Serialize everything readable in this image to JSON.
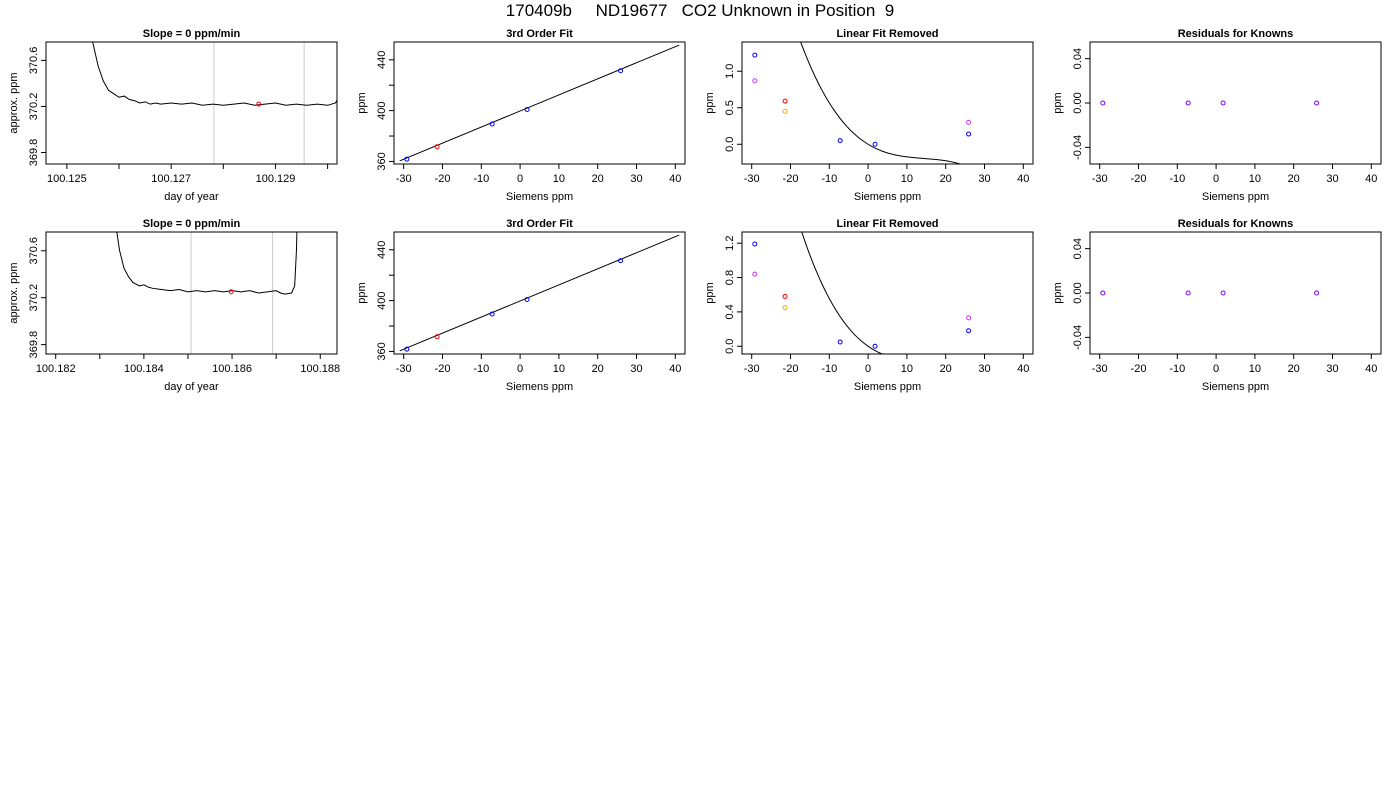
{
  "page": {
    "title": "170409b     ND19677   CO2 Unknown in Position  9"
  },
  "colors": {
    "line": "#000000",
    "vline": "#cccccc",
    "blue": "#0000ff",
    "red": "#ff0000",
    "orange": "#ffa500",
    "magenta": "#cc33ff",
    "purple": "#8000ff"
  },
  "chart_data": [
    {
      "type": "line",
      "title": "Slope =  0  ppm/min",
      "xlabel": "day of year",
      "ylabel": "approx. ppm",
      "xlim": [
        100.1246,
        100.13018
      ],
      "ylim": [
        369.7,
        370.76
      ],
      "xticks": [
        100.125,
        100.126,
        100.127,
        100.128,
        100.129,
        100.13
      ],
      "xtick_labels": [
        "100.125",
        "",
        "100.127",
        "",
        "100.129",
        ""
      ],
      "yticks": [
        369.8,
        370.2,
        370.6
      ],
      "ytick_labels": [
        "369.8",
        "370.2",
        "370.6"
      ],
      "vlines": [
        100.12782,
        100.12955
      ],
      "series": [
        {
          "values": [
            [
              100.12525,
              371.2
            ],
            [
              100.12545,
              370.85
            ],
            [
              100.1256,
              370.55
            ],
            [
              100.1257,
              370.42
            ],
            [
              100.1258,
              370.34
            ],
            [
              100.1259,
              370.31
            ],
            [
              100.126,
              370.28
            ],
            [
              100.1261,
              370.29
            ],
            [
              100.1262,
              370.26
            ],
            [
              100.1263,
              370.25
            ],
            [
              100.1264,
              370.23
            ],
            [
              100.1265,
              370.24
            ],
            [
              100.1266,
              370.22
            ],
            [
              100.1267,
              370.23
            ],
            [
              100.1268,
              370.22
            ],
            [
              100.127,
              370.23
            ],
            [
              100.1272,
              370.22
            ],
            [
              100.1274,
              370.23
            ],
            [
              100.1276,
              370.21
            ],
            [
              100.1278,
              370.22
            ],
            [
              100.128,
              370.21
            ],
            [
              100.1282,
              370.22
            ],
            [
              100.1284,
              370.23
            ],
            [
              100.1286,
              370.21
            ],
            [
              100.1288,
              370.22
            ],
            [
              100.129,
              370.23
            ],
            [
              100.1292,
              370.21
            ],
            [
              100.1294,
              370.22
            ],
            [
              100.1296,
              370.21
            ],
            [
              100.1298,
              370.22
            ],
            [
              100.13,
              370.21
            ],
            [
              100.13015,
              370.23
            ],
            [
              100.1302,
              370.27
            ],
            [
              100.13028,
              370.5
            ],
            [
              100.13035,
              371.2
            ]
          ]
        }
      ],
      "points": [
        {
          "x": 100.12868,
          "y": 370.22,
          "color": "red"
        }
      ]
    },
    {
      "type": "line",
      "title": "3rd Order Fit",
      "xlabel": "Siemens ppm",
      "ylabel": "ppm",
      "xlim": [
        -32.5,
        42.5
      ],
      "ylim": [
        358,
        454
      ],
      "xticks": [
        -30,
        -20,
        -10,
        0,
        10,
        20,
        30,
        40
      ],
      "xtick_labels": [
        "-30",
        "-20",
        "-10",
        "0",
        "10",
        "20",
        "30",
        "40"
      ],
      "yticks": [
        360,
        380,
        400,
        420,
        440
      ],
      "ytick_labels": [
        "360",
        "",
        "400",
        "",
        "440"
      ],
      "series": [
        {
          "values": [
            [
              -31,
              360.5
            ],
            [
              41,
              451.6
            ]
          ]
        }
      ],
      "points": [
        {
          "x": -29.2,
          "y": 361.8,
          "color": "blue"
        },
        {
          "x": -21.4,
          "y": 371.6,
          "color": "red"
        },
        {
          "x": -7.2,
          "y": 389.5,
          "color": "blue"
        },
        {
          "x": 1.8,
          "y": 400.9,
          "color": "blue"
        },
        {
          "x": 25.9,
          "y": 431.4,
          "color": "blue"
        }
      ]
    },
    {
      "type": "scatter",
      "title": "Linear Fit Removed",
      "xlabel": "Siemens ppm",
      "ylabel": "ppm",
      "xlim": [
        -32.5,
        42.5
      ],
      "ylim": [
        -0.27,
        1.4
      ],
      "xticks": [
        -30,
        -20,
        -10,
        0,
        10,
        20,
        30,
        40
      ],
      "xtick_labels": [
        "-30",
        "-20",
        "-10",
        "0",
        "10",
        "20",
        "30",
        "40"
      ],
      "yticks": [
        0.0,
        0.5,
        1.0
      ],
      "ytick_labels": [
        "0.0",
        "0.5",
        "1.0"
      ],
      "curve": {
        "a": 0.0,
        "b": -0.0324,
        "c": 0.00197,
        "d": -4.57e-05,
        "xmin": -30.5,
        "xmax": 41
      },
      "points": [
        {
          "x": -29.2,
          "y": 1.22,
          "color": "blue"
        },
        {
          "x": -29.2,
          "y": 0.87,
          "color": "magenta"
        },
        {
          "x": -21.4,
          "y": 0.59,
          "color": "red"
        },
        {
          "x": -21.4,
          "y": 0.45,
          "color": "orange"
        },
        {
          "x": -7.2,
          "y": 0.05,
          "color": "blue"
        },
        {
          "x": 1.8,
          "y": 0.0,
          "color": "blue"
        },
        {
          "x": 25.9,
          "y": 0.14,
          "color": "blue"
        },
        {
          "x": 25.9,
          "y": 0.3,
          "color": "magenta"
        }
      ]
    },
    {
      "type": "scatter",
      "title": "Residuals for Knowns",
      "xlabel": "Siemens ppm",
      "ylabel": "ppm",
      "xlim": [
        -32.5,
        42.5
      ],
      "ylim": [
        -0.055,
        0.055
      ],
      "xticks": [
        -30,
        -20,
        -10,
        0,
        10,
        20,
        30,
        40
      ],
      "xtick_labels": [
        "-30",
        "-20",
        "-10",
        "0",
        "10",
        "20",
        "30",
        "40"
      ],
      "yticks": [
        -0.04,
        0.0,
        0.04
      ],
      "ytick_labels": [
        "-0.04",
        "0.00",
        "0.04"
      ],
      "points": [
        {
          "x": -29.2,
          "y": 0.0,
          "color": "purple"
        },
        {
          "x": -7.2,
          "y": 0.0,
          "color": "purple"
        },
        {
          "x": 1.8,
          "y": 0.0,
          "color": "purple"
        },
        {
          "x": 25.9,
          "y": 0.0,
          "color": "purple"
        }
      ]
    },
    {
      "type": "line",
      "title": "Slope =  0  ppm/min",
      "xlabel": "day of year",
      "ylabel": "approx. ppm",
      "xlim": [
        100.18178,
        100.18838
      ],
      "ylim": [
        369.72,
        370.76
      ],
      "xticks": [
        100.182,
        100.183,
        100.184,
        100.185,
        100.186,
        100.187,
        100.188
      ],
      "xtick_labels": [
        "100.182",
        "",
        "100.184",
        "",
        "100.186",
        "",
        "100.188"
      ],
      "yticks": [
        369.8,
        370.2,
        370.6
      ],
      "ytick_labels": [
        "369.8",
        "370.2",
        "370.6"
      ],
      "vlines": [
        100.18507,
        100.18692
      ],
      "series": [
        {
          "values": [
            [
              100.18322,
              371.2
            ],
            [
              100.18335,
              370.85
            ],
            [
              100.18345,
              370.6
            ],
            [
              100.18355,
              370.45
            ],
            [
              100.18365,
              370.38
            ],
            [
              100.18375,
              370.33
            ],
            [
              100.1839,
              370.3
            ],
            [
              100.184,
              370.31
            ],
            [
              100.1841,
              370.29
            ],
            [
              100.1842,
              370.28
            ],
            [
              100.1844,
              370.27
            ],
            [
              100.1846,
              370.26
            ],
            [
              100.1848,
              370.27
            ],
            [
              100.185,
              370.25
            ],
            [
              100.1852,
              370.26
            ],
            [
              100.1854,
              370.25
            ],
            [
              100.1856,
              370.26
            ],
            [
              100.1858,
              370.25
            ],
            [
              100.186,
              370.26
            ],
            [
              100.1862,
              370.25
            ],
            [
              100.1864,
              370.26
            ],
            [
              100.1866,
              370.24
            ],
            [
              100.1868,
              370.25
            ],
            [
              100.187,
              370.26
            ],
            [
              100.1871,
              370.24
            ],
            [
              100.1872,
              370.23
            ],
            [
              100.18735,
              370.24
            ],
            [
              100.18742,
              370.3
            ],
            [
              100.18746,
              370.6
            ],
            [
              100.1875,
              371.2
            ]
          ]
        }
      ],
      "points": [
        {
          "x": 100.18598,
          "y": 370.25,
          "color": "red"
        }
      ]
    },
    {
      "type": "line",
      "title": "3rd Order Fit",
      "xlabel": "Siemens ppm",
      "ylabel": "ppm",
      "xlim": [
        -32.5,
        42.5
      ],
      "ylim": [
        358,
        454
      ],
      "xticks": [
        -30,
        -20,
        -10,
        0,
        10,
        20,
        30,
        40
      ],
      "xtick_labels": [
        "-30",
        "-20",
        "-10",
        "0",
        "10",
        "20",
        "30",
        "40"
      ],
      "yticks": [
        360,
        380,
        400,
        420,
        440
      ],
      "ytick_labels": [
        "360",
        "",
        "400",
        "",
        "440"
      ],
      "series": [
        {
          "values": [
            [
              -31,
              360.5
            ],
            [
              41,
              451.6
            ]
          ]
        }
      ],
      "points": [
        {
          "x": -29.2,
          "y": 361.8,
          "color": "blue"
        },
        {
          "x": -21.4,
          "y": 371.6,
          "color": "red"
        },
        {
          "x": -7.2,
          "y": 389.5,
          "color": "blue"
        },
        {
          "x": 1.8,
          "y": 400.9,
          "color": "blue"
        },
        {
          "x": 25.9,
          "y": 431.4,
          "color": "blue"
        }
      ]
    },
    {
      "type": "scatter",
      "title": "Linear Fit Removed",
      "xlabel": "Siemens ppm",
      "ylabel": "ppm",
      "xlim": [
        -32.5,
        42.5
      ],
      "ylim": [
        -0.09,
        1.33
      ],
      "xticks": [
        -30,
        -20,
        -10,
        0,
        10,
        20,
        30,
        40
      ],
      "xtick_labels": [
        "-30",
        "-20",
        "-10",
        "0",
        "10",
        "20",
        "30",
        "40"
      ],
      "yticks": [
        0.0,
        0.4,
        0.8,
        1.2
      ],
      "ytick_labels": [
        "0.0",
        "0.4",
        "0.8",
        "1.2"
      ],
      "curve": {
        "a": 0.0,
        "b": -0.0315,
        "c": 0.00197,
        "d": -4.3e-05,
        "xmin": -30.5,
        "xmax": 41
      },
      "points": [
        {
          "x": -29.2,
          "y": 1.19,
          "color": "blue"
        },
        {
          "x": -29.2,
          "y": 0.84,
          "color": "magenta"
        },
        {
          "x": -21.4,
          "y": 0.58,
          "color": "red"
        },
        {
          "x": -21.4,
          "y": 0.45,
          "color": "orange"
        },
        {
          "x": -7.2,
          "y": 0.05,
          "color": "blue"
        },
        {
          "x": 1.8,
          "y": 0.0,
          "color": "blue"
        },
        {
          "x": 25.9,
          "y": 0.18,
          "color": "blue"
        },
        {
          "x": 25.9,
          "y": 0.33,
          "color": "magenta"
        }
      ]
    },
    {
      "type": "scatter",
      "title": "Residuals for Knowns",
      "xlabel": "Siemens ppm",
      "ylabel": "ppm",
      "xlim": [
        -32.5,
        42.5
      ],
      "ylim": [
        -0.055,
        0.055
      ],
      "xticks": [
        -30,
        -20,
        -10,
        0,
        10,
        20,
        30,
        40
      ],
      "xtick_labels": [
        "-30",
        "-20",
        "-10",
        "0",
        "10",
        "20",
        "30",
        "40"
      ],
      "yticks": [
        -0.04,
        0.0,
        0.04
      ],
      "ytick_labels": [
        "-0.04",
        "0.00",
        "0.04"
      ],
      "points": [
        {
          "x": -29.2,
          "y": 0.0,
          "color": "purple"
        },
        {
          "x": -7.2,
          "y": 0.0,
          "color": "purple"
        },
        {
          "x": 1.8,
          "y": 0.0,
          "color": "purple"
        },
        {
          "x": 25.9,
          "y": 0.0,
          "color": "purple"
        }
      ]
    }
  ]
}
